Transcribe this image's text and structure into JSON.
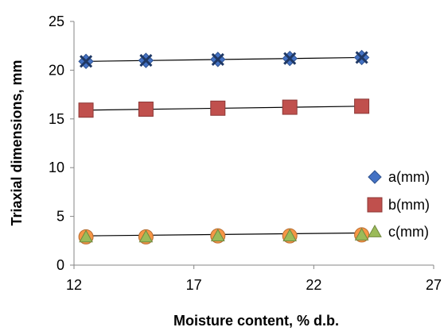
{
  "chart_data": {
    "type": "scatter",
    "title": "",
    "xlabel": "Moisture content, % d.b.",
    "ylabel": "Triaxial dimensions, mm",
    "xlim": [
      12,
      27
    ],
    "ylim": [
      0,
      25
    ],
    "xticks": [
      12,
      17,
      22,
      27
    ],
    "yticks": [
      0,
      5,
      10,
      15,
      20,
      25
    ],
    "grid": false,
    "legend_position": "right",
    "series": [
      {
        "name": "a(mm)",
        "marker": "diamond",
        "color": "#4472C4",
        "x": [
          12.5,
          15,
          18,
          21,
          24
        ],
        "y": [
          20.9,
          21.0,
          21.1,
          21.2,
          21.3
        ],
        "trend": [
          [
            12.5,
            20.9
          ],
          [
            24,
            21.3
          ]
        ],
        "overlay_marker": "x",
        "overlay_color": "#1F3864"
      },
      {
        "name": "b(mm)",
        "marker": "square",
        "color": "#C0504D",
        "x": [
          12.5,
          15,
          18,
          21,
          24
        ],
        "y": [
          15.9,
          16.0,
          16.1,
          16.2,
          16.3
        ],
        "trend": [
          [
            12.5,
            15.9
          ],
          [
            24,
            16.3
          ]
        ]
      },
      {
        "name": "c(mm)",
        "marker": "triangle",
        "color": "#9BBB59",
        "x": [
          12.5,
          15,
          18,
          21,
          24
        ],
        "y": [
          2.9,
          2.9,
          3.0,
          3.0,
          3.1
        ],
        "trend": [
          [
            12.5,
            3.0
          ],
          [
            24,
            3.3
          ]
        ],
        "overlay_marker": "circle",
        "overlay_color": "#F79646"
      }
    ]
  }
}
